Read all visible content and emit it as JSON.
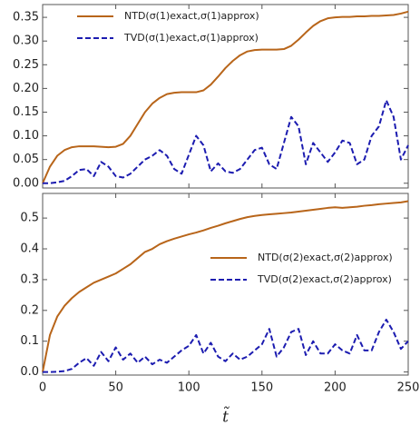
{
  "chart_data": [
    {
      "type": "line",
      "x_label": null,
      "x": [
        0,
        5,
        10,
        15,
        20,
        25,
        30,
        35,
        40,
        45,
        50,
        55,
        60,
        65,
        70,
        75,
        80,
        85,
        90,
        95,
        100,
        105,
        110,
        115,
        120,
        125,
        130,
        135,
        140,
        145,
        150,
        155,
        160,
        165,
        170,
        175,
        180,
        185,
        190,
        195,
        200,
        205,
        210,
        215,
        220,
        225,
        230,
        235,
        240,
        245,
        250
      ],
      "series": [
        {
          "name": "NTD(σ(1)exact,σ(1)approx)",
          "color": "#b8651a",
          "dash": false,
          "values": [
            0.0,
            0.035,
            0.058,
            0.07,
            0.076,
            0.078,
            0.078,
            0.078,
            0.077,
            0.076,
            0.077,
            0.083,
            0.1,
            0.125,
            0.15,
            0.168,
            0.18,
            0.188,
            0.191,
            0.192,
            0.192,
            0.192,
            0.196,
            0.208,
            0.225,
            0.243,
            0.258,
            0.27,
            0.278,
            0.281,
            0.282,
            0.282,
            0.282,
            0.283,
            0.29,
            0.303,
            0.318,
            0.332,
            0.342,
            0.348,
            0.35,
            0.351,
            0.351,
            0.352,
            0.352,
            0.353,
            0.353,
            0.354,
            0.355,
            0.358,
            0.362
          ]
        },
        {
          "name": "TVD(σ(1)exact,σ(1)approx)",
          "color": "#1c1cb0",
          "dash": true,
          "values": [
            0.0,
            0.0,
            0.002,
            0.005,
            0.015,
            0.028,
            0.03,
            0.015,
            0.045,
            0.035,
            0.015,
            0.012,
            0.02,
            0.035,
            0.05,
            0.058,
            0.07,
            0.058,
            0.03,
            0.02,
            0.06,
            0.1,
            0.08,
            0.025,
            0.042,
            0.025,
            0.022,
            0.03,
            0.05,
            0.07,
            0.075,
            0.04,
            0.03,
            0.085,
            0.14,
            0.12,
            0.04,
            0.085,
            0.065,
            0.045,
            0.065,
            0.09,
            0.085,
            0.04,
            0.05,
            0.1,
            0.12,
            0.175,
            0.14,
            0.05,
            0.08
          ]
        }
      ],
      "xlim": [
        0,
        250
      ],
      "xticks": [
        0,
        50,
        100,
        150,
        200,
        250
      ],
      "show_xtick_labels": false,
      "ylim": [
        -0.01,
        0.377
      ],
      "yticks": [
        {
          "value": 0,
          "label": "0.00"
        },
        {
          "value": 0.05,
          "label": "0.05"
        },
        {
          "value": 0.1,
          "label": "0.10"
        },
        {
          "value": 0.15,
          "label": "0.15"
        },
        {
          "value": 0.2,
          "label": "0.20"
        },
        {
          "value": 0.25,
          "label": "0.25"
        },
        {
          "value": 0.3,
          "label": "0.30"
        },
        {
          "value": 0.35,
          "label": "0.35"
        }
      ],
      "legend": "upper left"
    },
    {
      "type": "line",
      "x_label": "t̃",
      "x": [
        0,
        5,
        10,
        15,
        20,
        25,
        30,
        35,
        40,
        45,
        50,
        55,
        60,
        65,
        70,
        75,
        80,
        85,
        90,
        95,
        100,
        105,
        110,
        115,
        120,
        125,
        130,
        135,
        140,
        145,
        150,
        155,
        160,
        165,
        170,
        175,
        180,
        185,
        190,
        195,
        200,
        205,
        210,
        215,
        220,
        225,
        230,
        235,
        240,
        245,
        250
      ],
      "series": [
        {
          "name": "NTD(σ(2)exact,σ(2)approx)",
          "color": "#b8651a",
          "dash": false,
          "values": [
            0,
            0.12,
            0.18,
            0.215,
            0.24,
            0.26,
            0.275,
            0.29,
            0.3,
            0.31,
            0.32,
            0.335,
            0.35,
            0.37,
            0.39,
            0.4,
            0.415,
            0.425,
            0.433,
            0.44,
            0.447,
            0.453,
            0.46,
            0.468,
            0.475,
            0.483,
            0.49,
            0.497,
            0.503,
            0.507,
            0.51,
            0.512,
            0.514,
            0.516,
            0.518,
            0.521,
            0.524,
            0.527,
            0.53,
            0.533,
            0.535,
            0.533,
            0.535,
            0.537,
            0.54,
            0.542,
            0.545,
            0.547,
            0.549,
            0.551,
            0.555
          ]
        },
        {
          "name": "TVD(σ(2)exact,σ(2)approx)",
          "color": "#1c1cb0",
          "dash": true,
          "values": [
            0.0,
            0.0,
            0.001,
            0.003,
            0.01,
            0.03,
            0.045,
            0.02,
            0.065,
            0.035,
            0.08,
            0.04,
            0.06,
            0.03,
            0.05,
            0.025,
            0.04,
            0.03,
            0.05,
            0.07,
            0.085,
            0.12,
            0.06,
            0.095,
            0.05,
            0.035,
            0.06,
            0.04,
            0.05,
            0.07,
            0.09,
            0.14,
            0.05,
            0.08,
            0.13,
            0.14,
            0.055,
            0.1,
            0.06,
            0.06,
            0.09,
            0.07,
            0.06,
            0.12,
            0.07,
            0.07,
            0.13,
            0.17,
            0.13,
            0.075,
            0.1
          ]
        }
      ],
      "xlim": [
        0,
        250
      ],
      "xticks": [
        0,
        50,
        100,
        150,
        200,
        250
      ],
      "show_xtick_labels": true,
      "ylim": [
        -0.01,
        0.58
      ],
      "yticks": [
        {
          "value": 0,
          "label": "0.0"
        },
        {
          "value": 0.1,
          "label": "0.1"
        },
        {
          "value": 0.2,
          "label": "0.2"
        },
        {
          "value": 0.3,
          "label": "0.3"
        },
        {
          "value": 0.4,
          "label": "0.4"
        },
        {
          "value": 0.5,
          "label": "0.5"
        }
      ],
      "legend": "center right"
    }
  ]
}
